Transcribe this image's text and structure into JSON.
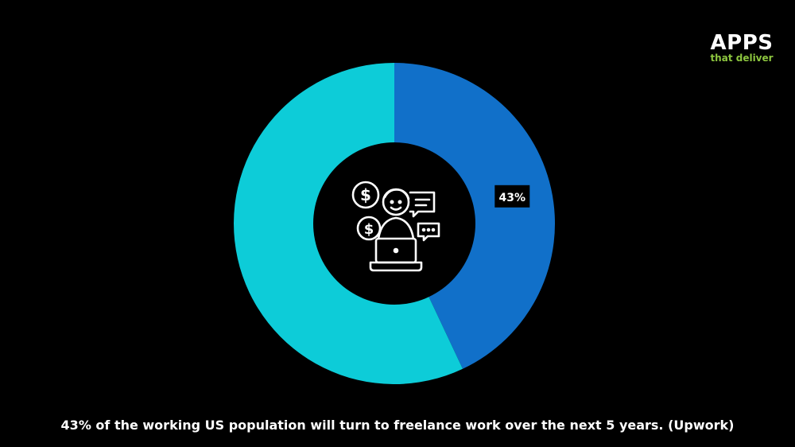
{
  "logo": {
    "main": "APPS",
    "sub": "that deliver"
  },
  "caption": "43% of the working US population will turn to freelance work over the next 5 years. (Upwork)",
  "center_icon": "freelancer-icon",
  "chart_data": {
    "type": "pie",
    "donut": true,
    "title": "",
    "slices": [
      {
        "label": "",
        "value": 43,
        "data_label": "43%",
        "color": "#1170c9"
      },
      {
        "label": "",
        "value": 57,
        "data_label": "",
        "color": "#0dccd8"
      }
    ]
  }
}
